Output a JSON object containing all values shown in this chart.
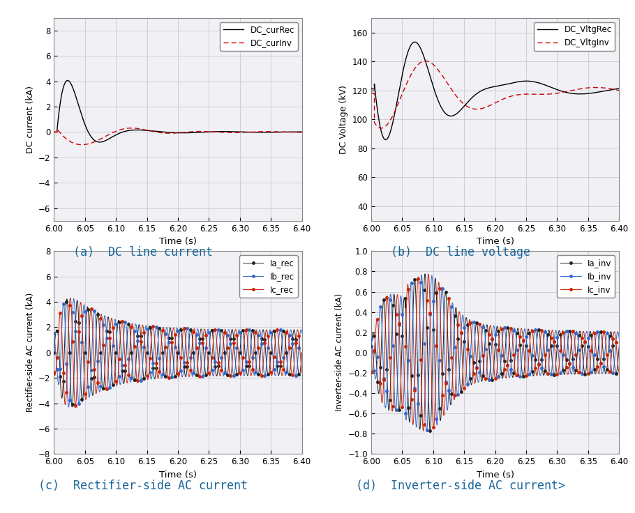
{
  "xlim": [
    6.0,
    6.4
  ],
  "xticks": [
    6.0,
    6.05,
    6.1,
    6.15,
    6.2,
    6.25,
    6.3,
    6.35,
    6.4
  ],
  "xlabel": "Time (s)",
  "ax1": {
    "ylabel": "DC current (kA)",
    "ylim": [
      -7,
      9
    ],
    "yticks": [
      -6,
      -4,
      -2,
      0,
      2,
      4,
      6,
      8
    ],
    "legend": [
      "DC_curRec",
      "DC_curInv"
    ],
    "colors": [
      "#000000",
      "#cc0000"
    ],
    "caption": "(a)  DC line current"
  },
  "ax2": {
    "ylabel": "DC Voltage (kV)",
    "ylim": [
      30,
      170
    ],
    "yticks": [
      40,
      60,
      80,
      100,
      120,
      140,
      160
    ],
    "legend": [
      "DC_VltgRec",
      "DC_VltgInv"
    ],
    "colors": [
      "#000000",
      "#cc0000"
    ],
    "caption": "(b)  DC line voltage"
  },
  "ax3": {
    "ylabel": "Rectifier-side AC current (kA)",
    "ylim": [
      -8,
      8
    ],
    "yticks": [
      -8,
      -6,
      -4,
      -2,
      0,
      2,
      4,
      6,
      8
    ],
    "legend": [
      "Ia_rec",
      "Ib_rec",
      "Ic_rec"
    ],
    "colors": [
      "#222222",
      "#3366cc",
      "#cc2200"
    ],
    "caption": "(c)  Rectifier-side AC current"
  },
  "ax4": {
    "ylabel": "Inverter-side AC current (kA)",
    "ylim": [
      -1.0,
      1.0
    ],
    "yticks": [
      -1.0,
      -0.8,
      -0.6,
      -0.4,
      -0.2,
      0.0,
      0.2,
      0.4,
      0.6,
      0.8,
      1.0
    ],
    "legend": [
      "Ia_inv",
      "Ib_inv",
      "Ic_inv"
    ],
    "colors": [
      "#222222",
      "#3366cc",
      "#cc2200"
    ],
    "caption": "(d)  Inverter-side AC current>"
  },
  "grid_color": "#c8c8d0",
  "bg_color": "#f0f0f5",
  "caption_color": "#1a6699",
  "caption_fontsize": 12
}
